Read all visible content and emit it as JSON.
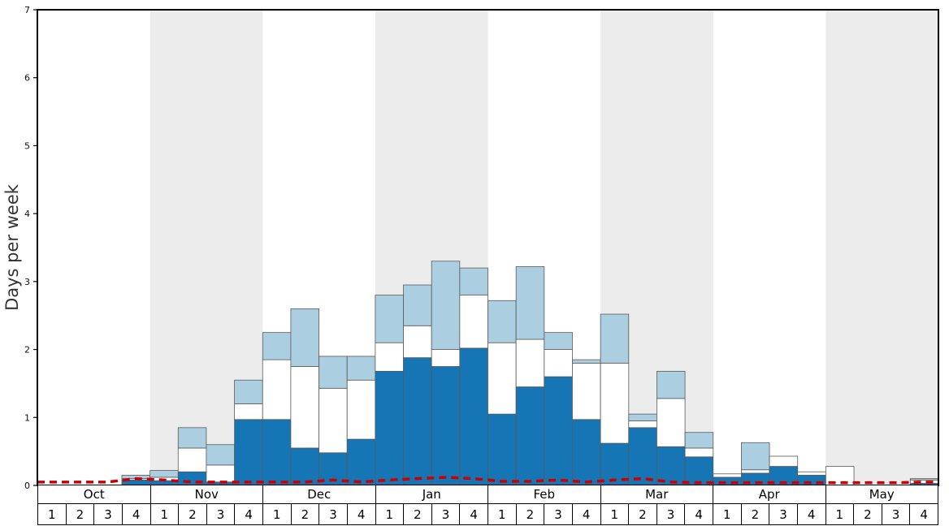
{
  "chart_data": {
    "type": "bar",
    "title": "",
    "ylabel": "Days per week",
    "ylim": [
      0,
      7
    ],
    "yticks": [
      0,
      1,
      2,
      3,
      4,
      5,
      6,
      7
    ],
    "months": [
      "Oct",
      "Nov",
      "Dec",
      "Jan",
      "Feb",
      "Mar",
      "Apr",
      "May"
    ],
    "week_labels": [
      "1",
      "2",
      "3",
      "4"
    ],
    "shaded_months": [
      "Nov",
      "Jan",
      "Mar",
      "May"
    ],
    "legend": "none",
    "grid": false,
    "colors": {
      "band": "#ececec",
      "bar_outline": "#5a5a5a",
      "axis": "#000000",
      "background": "#ffffff"
    },
    "series": [
      {
        "name": "dark-blue-days",
        "type": "stacked-bar-bottom",
        "color": "#1575b5",
        "values": [
          0,
          0,
          0,
          0.08,
          0.07,
          0.2,
          0.05,
          0.97,
          0.97,
          0.55,
          0.48,
          0.68,
          1.68,
          1.88,
          1.75,
          2.02,
          1.05,
          1.45,
          1.6,
          0.97,
          0.62,
          0.85,
          0.57,
          0.42,
          0.12,
          0.18,
          0.28,
          0.15,
          0,
          0,
          0,
          0.03
        ]
      },
      {
        "name": "white-days",
        "type": "stacked-bar-middle",
        "color": "#ffffff",
        "values": [
          0,
          0,
          0,
          0.02,
          0.05,
          0.35,
          0.25,
          0.23,
          0.88,
          1.2,
          0.95,
          0.87,
          0.42,
          0.47,
          0.25,
          0.78,
          1.05,
          0.7,
          0.4,
          0.83,
          1.18,
          0.1,
          0.71,
          0.13,
          0.05,
          0.05,
          0.15,
          0.05,
          0.28,
          0,
          0,
          0.05
        ]
      },
      {
        "name": "light-blue-days",
        "type": "stacked-bar-top",
        "color": "#abcfe0",
        "values": [
          0,
          0,
          0,
          0.05,
          0.1,
          0.3,
          0.3,
          0.35,
          0.4,
          0.85,
          0.47,
          0.35,
          0.7,
          0.6,
          1.3,
          0.4,
          0.62,
          1.07,
          0.25,
          0.05,
          0.72,
          0.1,
          0.4,
          0.23,
          0,
          0.4,
          0,
          0,
          0,
          0,
          0,
          0.02
        ]
      },
      {
        "name": "red-dashed-line",
        "type": "line",
        "style": "dashed",
        "color": "#cc0000",
        "values": [
          0.05,
          0.05,
          0.05,
          0.1,
          0.08,
          0.05,
          0.05,
          0.05,
          0.05,
          0.05,
          0.08,
          0.05,
          0.08,
          0.1,
          0.12,
          0.1,
          0.06,
          0.06,
          0.08,
          0.05,
          0.08,
          0.1,
          0.05,
          0.04,
          0.04,
          0.04,
          0.04,
          0.04,
          0.04,
          0.04,
          0.04,
          0.05
        ]
      }
    ]
  }
}
